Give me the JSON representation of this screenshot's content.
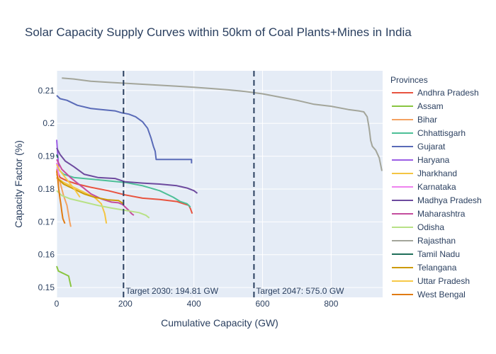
{
  "chart_data": {
    "type": "line",
    "title": "Solar Capacity Supply Curves within 50km of Coal Plants+Mines in India",
    "xlabel": "Cumulative Capacity (GW)",
    "ylabel": "Capacity Factor (%)",
    "xlim": [
      0,
      950
    ],
    "ylim": [
      0.147,
      0.216
    ],
    "xticks": [
      0,
      200,
      400,
      600,
      800
    ],
    "yticks": [
      0.15,
      0.16,
      0.17,
      0.18,
      0.19,
      0.2,
      0.21
    ],
    "xtick_labels": [
      "0",
      "200",
      "400",
      "600",
      "800"
    ],
    "ytick_labels": [
      "0.15",
      "0.16",
      "0.17",
      "0.18",
      "0.19",
      "0.2",
      "0.21"
    ],
    "grid": true,
    "legend_title": "Provinces",
    "legend_position": "right",
    "plot_background": "#e5ecf6",
    "series": [
      {
        "name": "Andhra Pradesh",
        "color": "#e8533f",
        "x": [
          0,
          10,
          30,
          60,
          100,
          150,
          200,
          250,
          300,
          350,
          370,
          385,
          390,
          395
        ],
        "y": [
          0.186,
          0.1835,
          0.1825,
          0.1815,
          0.1805,
          0.1795,
          0.1782,
          0.1772,
          0.1768,
          0.1762,
          0.1755,
          0.175,
          0.174,
          0.1725
        ]
      },
      {
        "name": "Assam",
        "color": "#89c540",
        "x": [
          0,
          5,
          15,
          25,
          35,
          38,
          42
        ],
        "y": [
          0.1565,
          0.155,
          0.1545,
          0.154,
          0.1535,
          0.152,
          0.1502
        ]
      },
      {
        "name": "Bihar",
        "color": "#f4a261",
        "x": [
          0,
          10,
          20,
          30,
          35,
          38,
          41
        ],
        "y": [
          0.1845,
          0.182,
          0.178,
          0.175,
          0.172,
          0.17,
          0.1685
        ]
      },
      {
        "name": "Chhattisgarh",
        "color": "#4dbf97",
        "x": [
          0,
          20,
          50,
          100,
          150,
          200,
          250,
          300,
          340,
          360,
          380,
          390
        ],
        "y": [
          0.1865,
          0.1845,
          0.1835,
          0.183,
          0.1825,
          0.182,
          0.181,
          0.1795,
          0.1775,
          0.1762,
          0.1755,
          0.1745
        ]
      },
      {
        "name": "Gujarat",
        "color": "#5a6bb8",
        "x": [
          0,
          10,
          30,
          60,
          100,
          130,
          170,
          190,
          210,
          230,
          250,
          265,
          275,
          282,
          287,
          290,
          393,
          393
        ],
        "y": [
          0.2085,
          0.2075,
          0.207,
          0.2055,
          0.2045,
          0.2042,
          0.2038,
          0.2032,
          0.2028,
          0.202,
          0.2005,
          0.1985,
          0.1955,
          0.193,
          0.1915,
          0.189,
          0.189,
          0.1878
        ]
      },
      {
        "name": "Haryana",
        "color": "#9b5de5",
        "x": [
          0,
          2,
          4,
          6
        ],
        "y": [
          0.195,
          0.192,
          0.189,
          0.186
        ]
      },
      {
        "name": "Jharkhand",
        "color": "#f4c542",
        "x": [
          0,
          20,
          50,
          80,
          110,
          130,
          140,
          145
        ],
        "y": [
          0.1835,
          0.182,
          0.1805,
          0.179,
          0.1775,
          0.1755,
          0.1725,
          0.1695
        ]
      },
      {
        "name": "Karnataka",
        "color": "#ee82ee",
        "x": [
          0,
          3,
          6
        ],
        "y": [
          0.188,
          0.186,
          0.184
        ]
      },
      {
        "name": "Madhya Pradesh",
        "color": "#6d4a9e",
        "x": [
          0,
          10,
          25,
          50,
          80,
          120,
          170,
          200,
          250,
          300,
          350,
          380,
          400,
          410
        ],
        "y": [
          0.1925,
          0.1905,
          0.1885,
          0.1868,
          0.1845,
          0.1835,
          0.1832,
          0.1822,
          0.1818,
          0.1815,
          0.181,
          0.1803,
          0.1795,
          0.1787
        ]
      },
      {
        "name": "Maharashtra",
        "color": "#c44d9e",
        "x": [
          0,
          15,
          40,
          70,
          100,
          130,
          160,
          180,
          192,
          200,
          210,
          218,
          225
        ],
        "y": [
          0.189,
          0.186,
          0.1835,
          0.181,
          0.1785,
          0.177,
          0.176,
          0.1758,
          0.1753,
          0.1745,
          0.1735,
          0.1725,
          0.172
        ]
      },
      {
        "name": "Odisha",
        "color": "#b8e186",
        "x": [
          0,
          15,
          40,
          80,
          120,
          160,
          200,
          240,
          260,
          270
        ],
        "y": [
          0.1795,
          0.178,
          0.177,
          0.176,
          0.175,
          0.1742,
          0.1735,
          0.1728,
          0.172,
          0.1712
        ]
      },
      {
        "name": "Rajasthan",
        "color": "#a3a59a",
        "x": [
          15,
          50,
          100,
          150,
          200,
          250,
          300,
          350,
          400,
          450,
          500,
          550,
          600,
          650,
          700,
          750,
          800,
          850,
          880,
          895,
          905,
          910,
          912,
          915,
          920,
          930,
          940,
          948
        ],
        "y": [
          0.2138,
          0.2135,
          0.2128,
          0.2125,
          0.2122,
          0.2119,
          0.2116,
          0.2113,
          0.211,
          0.2106,
          0.2102,
          0.2097,
          0.209,
          0.208,
          0.207,
          0.2058,
          0.2052,
          0.2042,
          0.2038,
          0.2035,
          0.202,
          0.199,
          0.1975,
          0.1948,
          0.193,
          0.1918,
          0.1895,
          0.1855
        ]
      },
      {
        "name": "Tamil Nadu",
        "color": "#1f6e5a",
        "x": [
          0,
          3
        ],
        "y": [
          0.1905,
          0.1895
        ]
      },
      {
        "name": "Telangana",
        "color": "#cc9a06",
        "x": [
          0,
          20,
          50,
          80,
          110,
          150,
          180,
          195
        ],
        "y": [
          0.1835,
          0.1815,
          0.18,
          0.1785,
          0.1775,
          0.1767,
          0.1765,
          0.1755
        ]
      },
      {
        "name": "Uttar Pradesh",
        "color": "#f7c948",
        "x": [
          0,
          10,
          25,
          40,
          55,
          68
        ],
        "y": [
          0.1875,
          0.1855,
          0.1835,
          0.1815,
          0.1795,
          0.1775
        ]
      },
      {
        "name": "West Bengal",
        "color": "#e07b13",
        "x": [
          0,
          3,
          6,
          9,
          12,
          15,
          18,
          24
        ],
        "y": [
          0.1855,
          0.183,
          0.18,
          0.1775,
          0.1755,
          0.173,
          0.171,
          0.1695
        ]
      }
    ],
    "vlines": [
      {
        "x": 194.81,
        "label": "Target 2030: 194.81 GW"
      },
      {
        "x": 575.0,
        "label": "Target 2047: 575.0 GW"
      }
    ]
  }
}
